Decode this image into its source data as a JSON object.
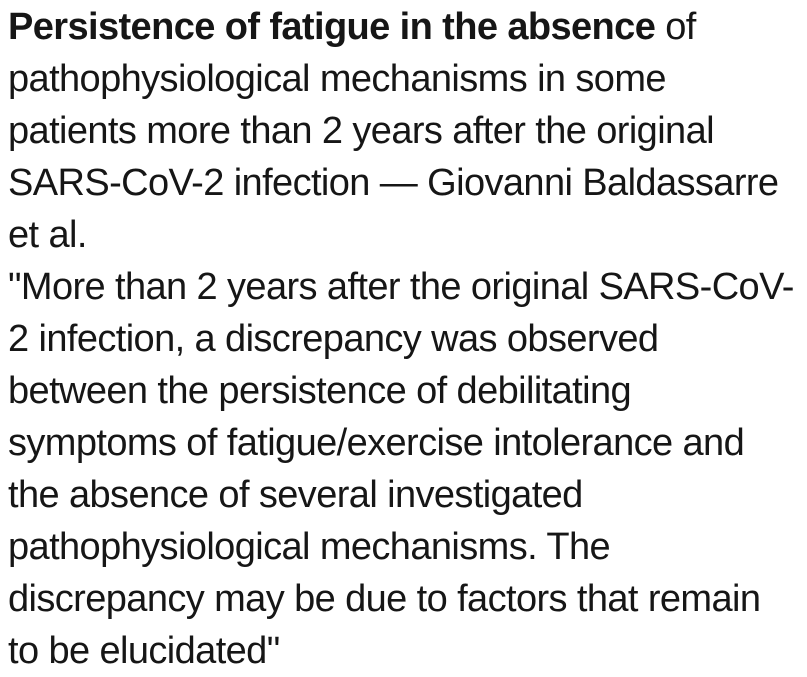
{
  "colors": {
    "background": "#ffffff",
    "text": "#161616"
  },
  "post": {
    "heading_bold": "Persistence of fatigue in the absence",
    "heading_after_bold": " of",
    "heading_lines": [
      "pathophysiological mechanisms in some",
      "patients more than 2 years after the original",
      "SARS-CoV-2 infection — Giovanni Baldassarre",
      "et al."
    ],
    "quote_lines": [
      "\"More than 2 years after the original SARS-CoV-",
      "2 infection, a discrepancy was observed",
      "between the persistence of debilitating",
      "symptoms of fatigue/exercise intolerance and",
      "the absence of several investigated",
      "pathophysiological mechanisms. The",
      "discrepancy may be due to factors that remain",
      "to be elucidated\""
    ]
  }
}
